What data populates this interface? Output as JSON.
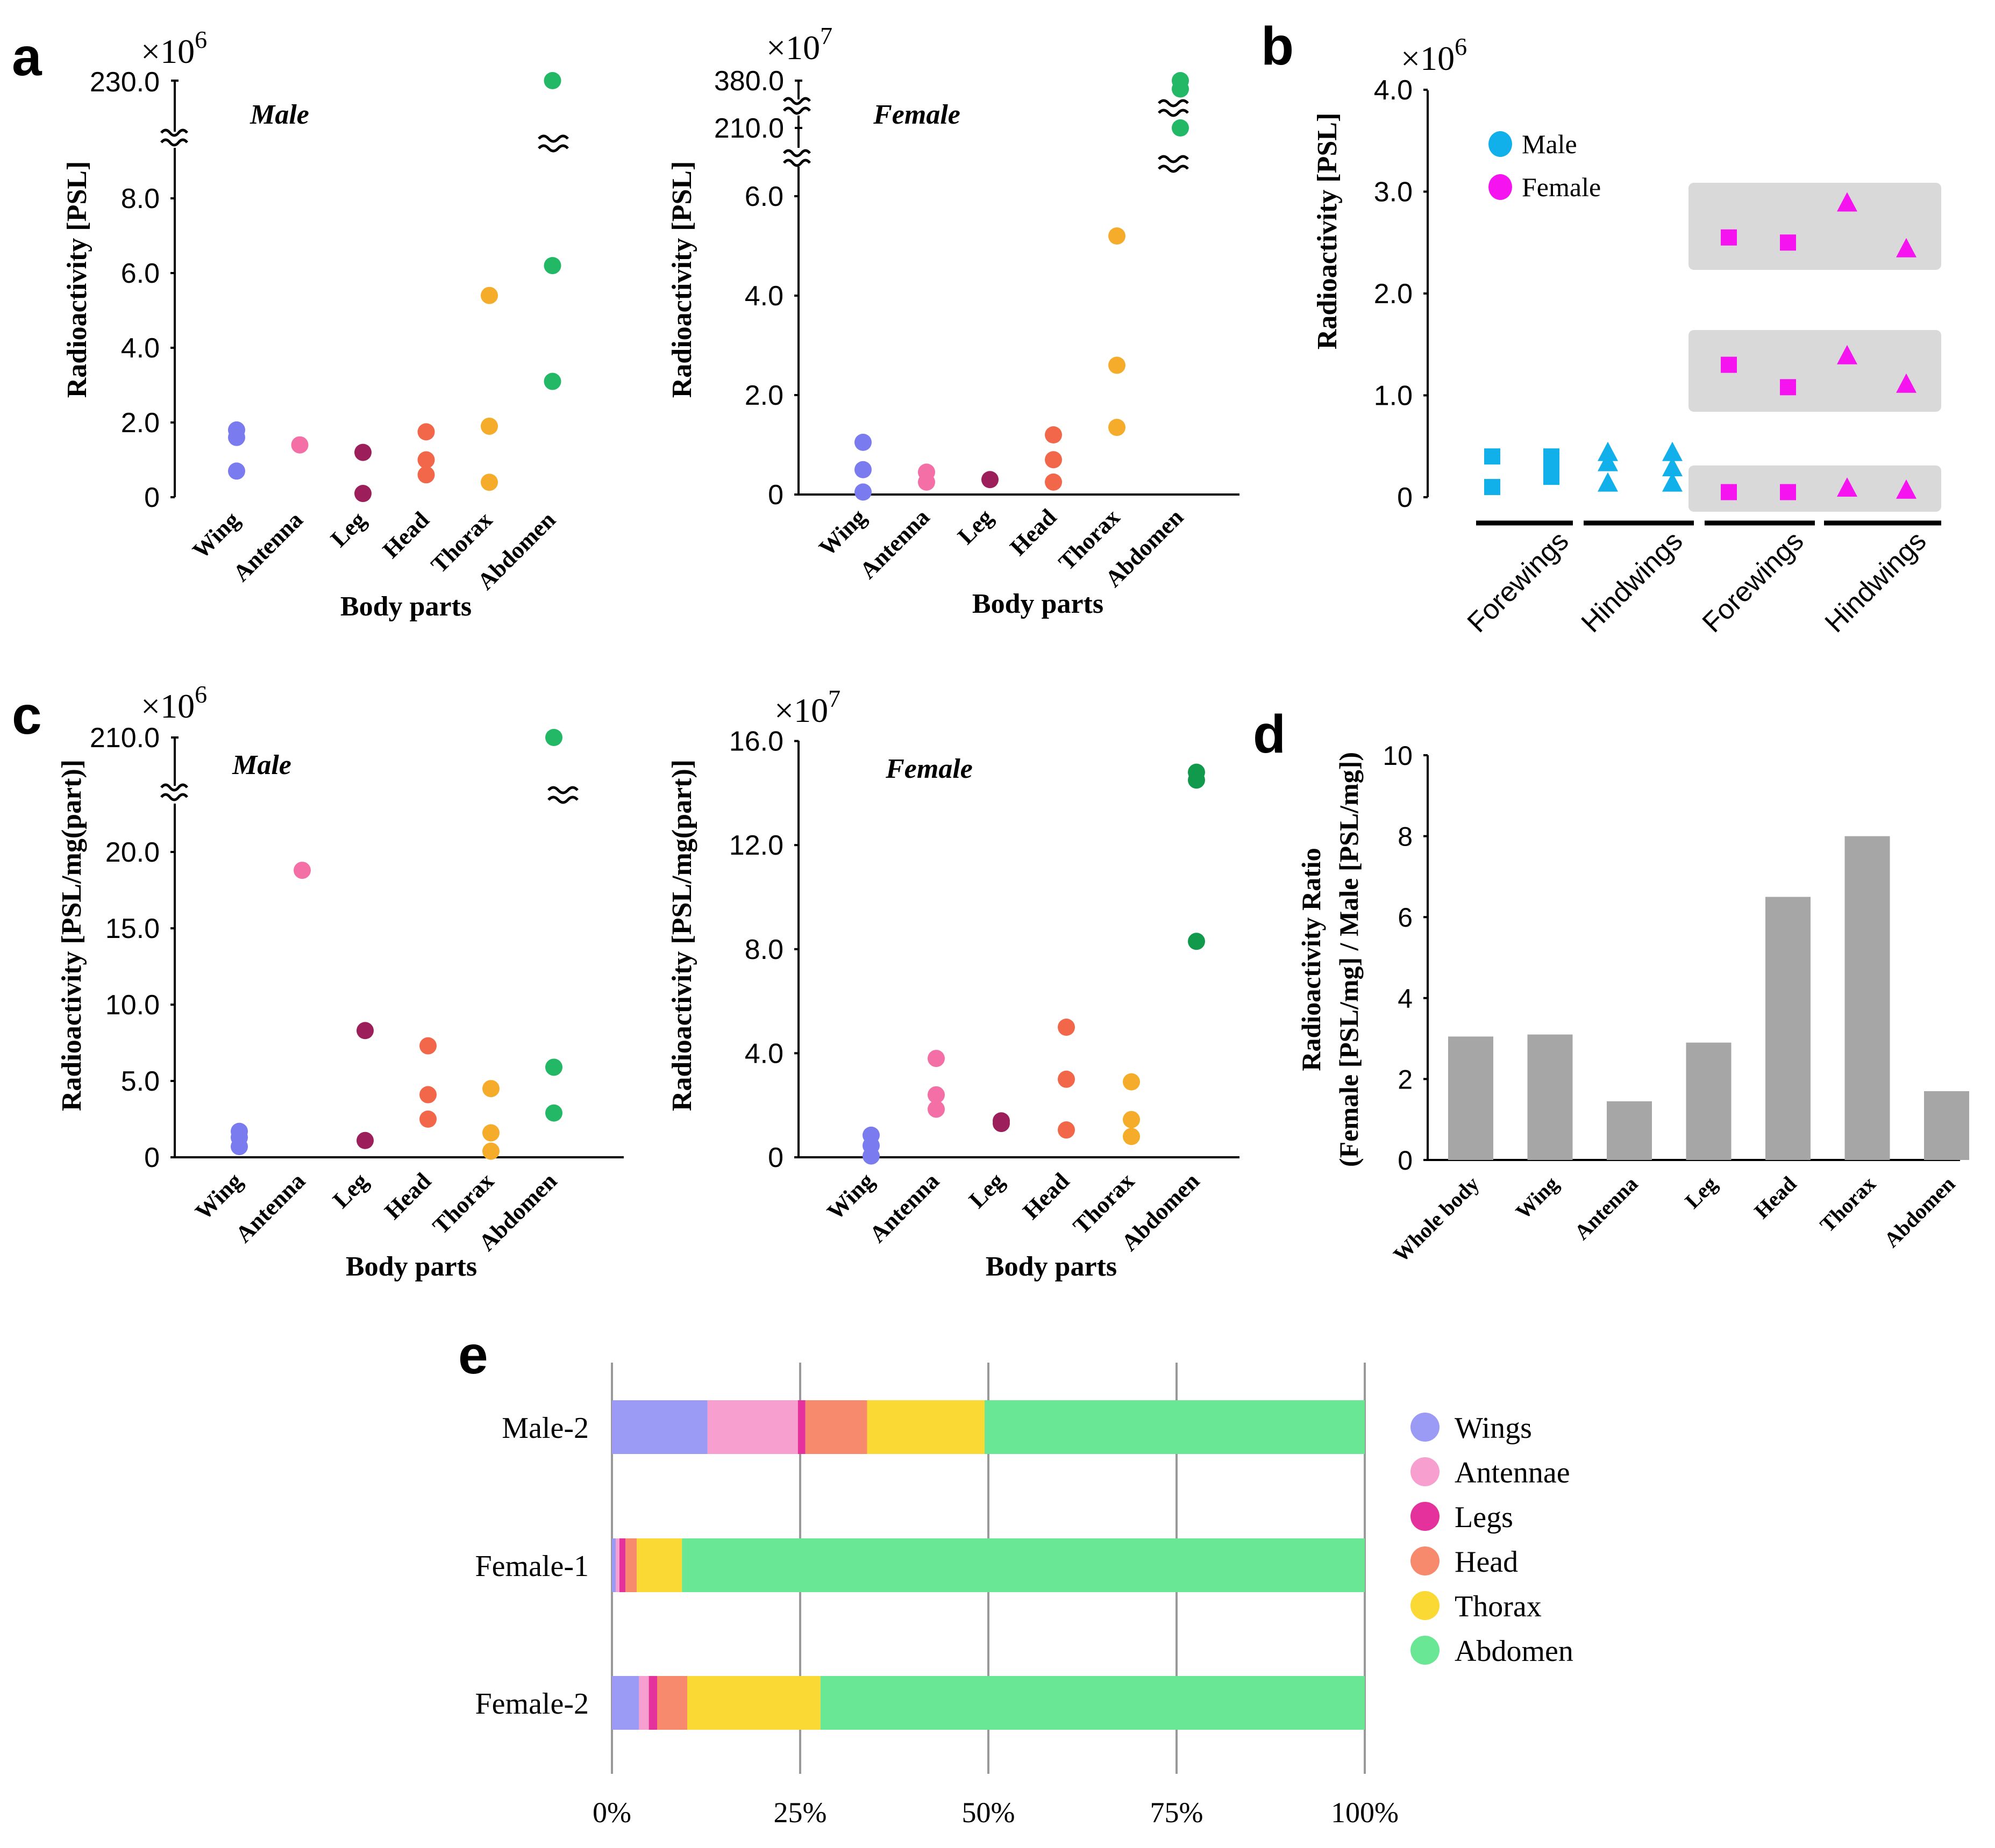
{
  "chart_data": [
    {
      "panel": "a",
      "type": "scatter",
      "title": "Male",
      "multiplier_base": "×10",
      "multiplier_exp": "6",
      "xlabel": "Body parts",
      "ylabel": "Radioactivity [PSL]",
      "yticks": [
        "0",
        "2.0",
        "4.0",
        "6.0",
        "8.0"
      ],
      "ybreak_tick": "230.0",
      "categories": [
        "Wing",
        "Antenna",
        "Leg",
        "Head",
        "Thorax",
        "Abdomen"
      ],
      "points": [
        {
          "category": "Wing",
          "values": [
            1.8,
            1.6,
            0.7
          ]
        },
        {
          "category": "Antenna",
          "values": [
            1.4
          ]
        },
        {
          "category": "Leg",
          "values": [
            1.2,
            0.1
          ]
        },
        {
          "category": "Head",
          "values": [
            1.75,
            1.0,
            0.6
          ]
        },
        {
          "category": "Thorax",
          "values": [
            5.4,
            1.9,
            0.4
          ]
        },
        {
          "category": "Abdomen",
          "values": [
            230.0,
            6.2,
            3.1
          ]
        }
      ]
    },
    {
      "panel": "a",
      "type": "scatter",
      "title": "Female",
      "multiplier_base": "×10",
      "multiplier_exp": "7",
      "xlabel": "Body parts",
      "ylabel": "Radioactivity [PSL]",
      "yticks": [
        "0",
        "2.0",
        "4.0",
        "6.0"
      ],
      "ybreak_ticks": [
        "380.0",
        "210.0"
      ],
      "categories": [
        "Wing",
        "Antenna",
        "Leg",
        "Head",
        "Thorax",
        "Abdomen"
      ],
      "points": [
        {
          "category": "Wing",
          "values": [
            1.05,
            0.5,
            0.05
          ]
        },
        {
          "category": "Antenna",
          "values": [
            0.45,
            0.25
          ]
        },
        {
          "category": "Leg",
          "values": [
            0.3
          ]
        },
        {
          "category": "Head",
          "values": [
            1.2,
            0.7,
            0.25
          ]
        },
        {
          "category": "Thorax",
          "values": [
            5.2,
            2.6,
            1.35
          ]
        },
        {
          "category": "Abdomen",
          "values": [
            380.0,
            350.0,
            210.0
          ]
        }
      ]
    },
    {
      "panel": "b",
      "type": "scatter",
      "multiplier_base": "×10",
      "multiplier_exp": "6",
      "ylabel": "Radioactivity [PSL]",
      "ylim": [
        0,
        4.0
      ],
      "yticks": [
        "0",
        "1.0",
        "2.0",
        "3.0",
        "4.0"
      ],
      "categories": [
        "Forewings",
        "Hindwings",
        "Forewings",
        "Hindwings"
      ],
      "legend": [
        "Male",
        "Female"
      ],
      "legend_position": "top-left",
      "series": [
        {
          "name": "Male",
          "marker": "square",
          "group": "Forewings",
          "columns": [
            [
              0.4,
              0.1
            ],
            [
              0.4,
              0.35,
              0.2
            ]
          ]
        },
        {
          "name": "Male",
          "marker": "triangle",
          "group": "Hindwings",
          "columns": [
            [
              0.45,
              0.35,
              0.15
            ],
            [
              0.45,
              0.3,
              0.15
            ]
          ]
        },
        {
          "name": "Female",
          "marker": "square",
          "group": "Forewings",
          "columns": [
            [
              2.55,
              1.3,
              0.05
            ],
            [
              2.5,
              1.08,
              0.05
            ]
          ]
        },
        {
          "name": "Female",
          "marker": "triangle",
          "group": "Hindwings",
          "columns": [
            [
              2.9,
              1.4,
              0.1
            ],
            [
              2.45,
              1.12,
              0.08
            ]
          ]
        }
      ]
    },
    {
      "panel": "c",
      "type": "scatter",
      "title": "Male",
      "multiplier_base": "×10",
      "multiplier_exp": "6",
      "xlabel": "Body parts",
      "ylabel": "Radioactivity [PSL/mg(part)]",
      "yticks": [
        "0",
        "5.0",
        "10.0",
        "15.0",
        "20.0"
      ],
      "ybreak_tick": "210.0",
      "categories": [
        "Wing",
        "Antenna",
        "Leg",
        "Head",
        "Thorax",
        "Abdomen"
      ],
      "points": [
        {
          "category": "Wing",
          "values": [
            1.7,
            1.3,
            0.7
          ]
        },
        {
          "category": "Antenna",
          "values": [
            18.8
          ]
        },
        {
          "category": "Leg",
          "values": [
            8.3,
            1.1
          ]
        },
        {
          "category": "Head",
          "values": [
            7.3,
            4.1,
            2.5
          ]
        },
        {
          "category": "Thorax",
          "values": [
            4.5,
            1.6,
            0.4
          ]
        },
        {
          "category": "Abdomen",
          "values": [
            210.0,
            5.9,
            2.9
          ]
        }
      ]
    },
    {
      "panel": "c",
      "type": "scatter",
      "title": "Female",
      "multiplier_base": "×10",
      "multiplier_exp": "7",
      "xlabel": "Body parts",
      "ylabel": "Radioactivity [PSL/mg(part)]",
      "ylim": [
        0,
        16.0
      ],
      "yticks": [
        "0",
        "4.0",
        "8.0",
        "12.0",
        "16.0"
      ],
      "categories": [
        "Wing",
        "Antenna",
        "Leg",
        "Head",
        "Thorax",
        "Abdomen"
      ],
      "points": [
        {
          "category": "Wing",
          "values": [
            0.85,
            0.45,
            0.05
          ]
        },
        {
          "category": "Antenna",
          "values": [
            3.8,
            2.4,
            1.85
          ]
        },
        {
          "category": "Leg",
          "values": [
            1.4,
            1.3
          ]
        },
        {
          "category": "Head",
          "values": [
            5.0,
            3.0,
            1.05
          ]
        },
        {
          "category": "Thorax",
          "values": [
            2.9,
            1.45,
            0.8
          ]
        },
        {
          "category": "Abdomen",
          "values": [
            14.8,
            14.5,
            8.3
          ]
        }
      ]
    },
    {
      "panel": "d",
      "type": "bar",
      "ylabel_line1": "Radioactivity Ratio",
      "ylabel_line2": "(Female [PSL/mg] / Male [PSL/mg])",
      "ylim": [
        0,
        10
      ],
      "yticks": [
        "0",
        "2",
        "4",
        "6",
        "8",
        "10"
      ],
      "categories": [
        "Whole body",
        "Wing",
        "Antenna",
        "Leg",
        "Head",
        "Thorax",
        "Abdomen"
      ],
      "values": [
        3.05,
        3.1,
        1.45,
        2.9,
        6.5,
        8.0,
        1.7
      ]
    },
    {
      "panel": "e",
      "type": "bar",
      "orientation": "horizontal",
      "stacked": true,
      "categories": [
        "Male-2",
        "Female-1",
        "Female-2"
      ],
      "xticks": [
        "0%",
        "25%",
        "50%",
        "75%",
        "100%"
      ],
      "legend_position": "right",
      "series": [
        {
          "name": "Wings",
          "values": [
            12.7,
            0.5,
            3.6
          ]
        },
        {
          "name": "Antennae",
          "values": [
            12.0,
            0.5,
            1.3
          ]
        },
        {
          "name": "Legs",
          "values": [
            1.0,
            0.8,
            1.1
          ]
        },
        {
          "name": "Head",
          "values": [
            8.2,
            1.5,
            4.0
          ]
        },
        {
          "name": "Thorax",
          "values": [
            15.6,
            6.0,
            17.7
          ]
        },
        {
          "name": "Abdomen",
          "values": [
            50.5,
            90.7,
            72.3
          ]
        }
      ]
    }
  ],
  "panel_letters": {
    "a": "a",
    "b": "b",
    "c": "c",
    "d": "d",
    "e": "e"
  },
  "break_symbol": "≈",
  "colors": {
    "Wing": "#7b7bf0",
    "Antenna": "#f46fa6",
    "Leg": "#9c1f5c",
    "Head": "#f2674a",
    "Thorax": "#f5ac2a",
    "Abdomen": "#22b866",
    "Abdomen_c_female": "#119a4c",
    "male_text": "#20b3e6",
    "female_text": "#f01ef0",
    "male_marker": "#12b0ea",
    "female_marker": "#f514f0",
    "bar_gray": "#a6a6a6",
    "group_box": "#d9d9d9",
    "e_Wings": "#9b9bf5",
    "e_Antennae": "#f7a0cf",
    "e_Legs": "#e5319b",
    "e_Head": "#f78a6c",
    "e_Thorax": "#fbd935",
    "e_Abdomen": "#6ae795"
  }
}
